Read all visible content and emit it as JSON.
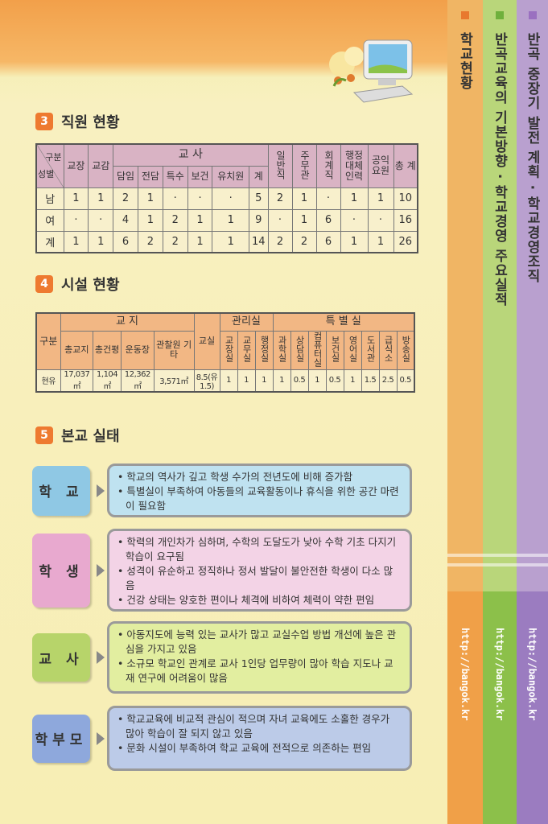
{
  "sidebar_tabs": [
    {
      "label": "학교현황",
      "color": "#f0b564",
      "marker": "#e8782e",
      "url": "http://bangok.kr"
    },
    {
      "label": "반곡교육의 기본방향 · 학교경영 주요실적",
      "color": "#b9d67a",
      "marker": "#6fb03c",
      "url": "http://bangok.kr"
    },
    {
      "label": "반곡 중장기 발전 계획 · 학교경영조직",
      "color": "#b9a0cf",
      "marker": "#9a70c0",
      "url": "http://bangok.kr"
    }
  ],
  "section3": {
    "number": "3",
    "title": "직원 현황",
    "corner_top": "구분",
    "corner_bottom": "성별",
    "headers": {
      "principal": "교장",
      "vice": "교감",
      "teachers": "교  사",
      "teacher_sub": [
        "담임",
        "전담",
        "특수",
        "보건",
        "유치원",
        "계"
      ],
      "general": "일반직",
      "official": "주무관",
      "accounting": "회계직",
      "admin": "행정대체인력",
      "service": "공익요원",
      "total": "총 계"
    },
    "rows": [
      [
        "남",
        "1",
        "1",
        "2",
        "1",
        "·",
        "·",
        "·",
        "5",
        "2",
        "1",
        "·",
        "1",
        "1",
        "10"
      ],
      [
        "여",
        "·",
        "·",
        "4",
        "1",
        "2",
        "1",
        "1",
        "9",
        "·",
        "1",
        "6",
        "·",
        "·",
        "16"
      ],
      [
        "계",
        "1",
        "1",
        "6",
        "2",
        "2",
        "1",
        "1",
        "14",
        "2",
        "2",
        "6",
        "1",
        "1",
        "26"
      ]
    ]
  },
  "section4": {
    "number": "4",
    "title": "시설 현황",
    "corner": "구분",
    "headers": {
      "land": "교  지",
      "land_sub": [
        "총교지",
        "총건평",
        "운동장",
        "관찰원 기타"
      ],
      "classroom": "교실",
      "mgmt": "관리실",
      "mgmt_sub": [
        "교장실",
        "교무실",
        "행정실"
      ],
      "special": "특  별  실",
      "special_sub": [
        "과학실",
        "상담실",
        "컴퓨터실",
        "보건실",
        "영어실",
        "도서관",
        "급식소",
        "방송실"
      ]
    },
    "row": [
      "현유",
      "17,037㎡",
      "1,104㎡",
      "12,362㎡",
      "3,571㎡",
      "8.5(유1.5)",
      "1",
      "1",
      "1",
      "1",
      "0.5",
      "1",
      "0.5",
      "1",
      "1.5",
      "2.5",
      "0.5"
    ]
  },
  "section5": {
    "number": "5",
    "title": "본교 실태",
    "items": [
      {
        "label": "학 교",
        "color": "#8fc8e4",
        "box": "#bfe2f0",
        "points": [
          "학교의 역사가 깊고 학생 수가의 전년도에 비해 증가함",
          "특별실이 부족하여 아동들의 교육활동이나 휴식을 위한 공간 마련이 필요함"
        ]
      },
      {
        "label": "학 생",
        "color": "#e8a9cf",
        "box": "#f3d3e6",
        "points": [
          "학력의 개인차가 심하며, 수학의 도달도가 낮아 수학 기초 다지기 학습이 요구됨",
          "성격이 유순하고 정직하나 정서 발달이 불안전한 학생이 다소 많음",
          "건강 상태는 양호한 편이나 체격에 비하여 체력이 약한 편임"
        ]
      },
      {
        "label": "교 사",
        "color": "#b7d46a",
        "box": "#e2eea0",
        "points": [
          "아동지도에 능력 있는 교사가 많고 교실수업 방법 개선에 높은 관심을 가지고 있음",
          "소규모 학교인 관계로 교사 1인당 업무량이 많아 학습 지도나 교재 연구에 어려움이 많음"
        ]
      },
      {
        "label": "학부모",
        "color": "#8ea8dc",
        "box": "#bccbe8",
        "points": [
          "학교교육에 비교적 관심이 적으며 자녀 교육에도 소홀한 경우가 많아 학습이 잘 되지 않고 있음",
          "문화 시설이 부족하여 학교 교육에 전적으로 의존하는 편임"
        ]
      }
    ]
  }
}
